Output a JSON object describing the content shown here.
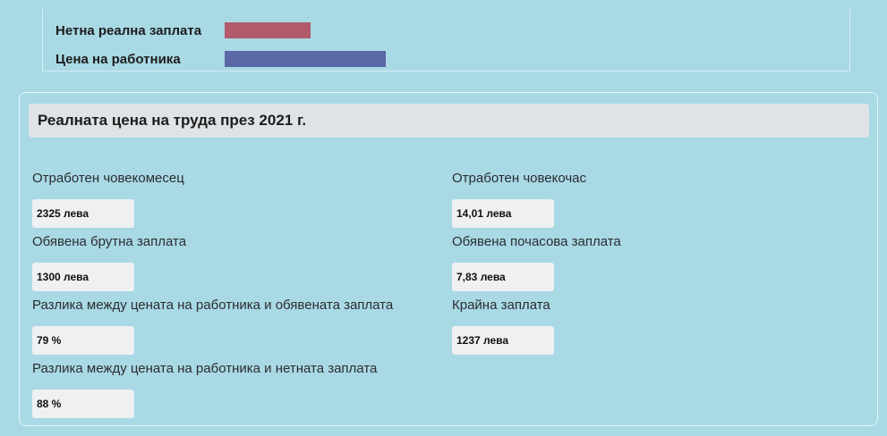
{
  "legend": {
    "items": [
      {
        "label": "Нетна реална заплата",
        "color": "#b25a6c"
      },
      {
        "label": "Цена на работника",
        "color": "#5b68a6"
      }
    ]
  },
  "panel": {
    "title": "Реалната цена на труда през 2021 г."
  },
  "fields": {
    "left": [
      {
        "label": "Отработен човекомесец",
        "value": "2325 лева"
      },
      {
        "label": "Обявена брутна заплата",
        "value": "1300 лева"
      },
      {
        "label": "Разлика между цената на работника и обявената заплата",
        "value": "79 %"
      },
      {
        "label": "Разлика между цената на работника и нетната заплата",
        "value": "88 %"
      }
    ],
    "right": [
      {
        "label": "Отработен човекочас",
        "value": "14,01 лева"
      },
      {
        "label": "Обявена почасова заплата",
        "value": "7,83 лева"
      },
      {
        "label": "Крайна заплата",
        "value": "1237 лева"
      }
    ]
  }
}
